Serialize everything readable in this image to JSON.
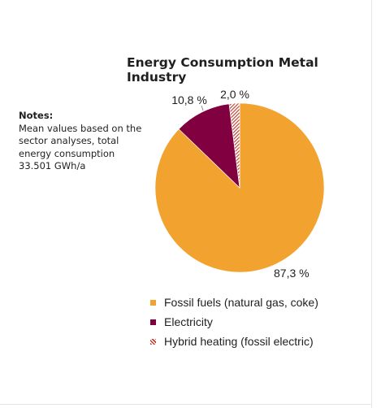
{
  "chart_data": {
    "type": "pie",
    "title": "Energy Consumption Metal Industry",
    "slices": [
      {
        "name": "Fossil fuels (natural gas, coke)",
        "value": 87.3,
        "label": "87,3 %",
        "color": "#F2A22F",
        "pattern": "solid"
      },
      {
        "name": "Electricity",
        "value": 10.8,
        "label": "10,8 %",
        "color": "#800040",
        "pattern": "solid"
      },
      {
        "name": "Hybrid heating (fossil electric)",
        "value": 2.0,
        "label": "2,0 %",
        "color": "#C0392B",
        "pattern": "hatched"
      }
    ],
    "legend_position": "bottom"
  },
  "notes": {
    "title": "Notes:",
    "body": "Mean values based on the sector analyses, total energy consumption 33.501 GWh/a"
  }
}
